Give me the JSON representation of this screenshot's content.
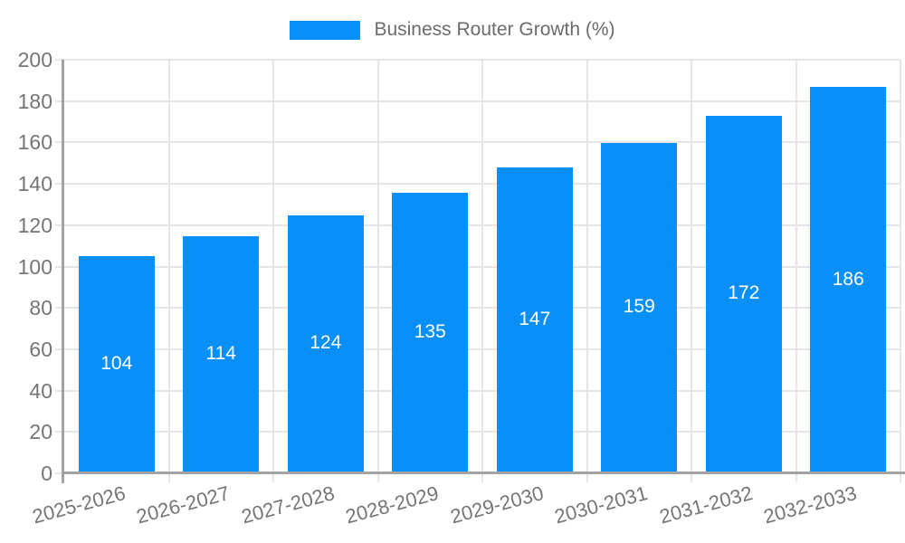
{
  "legend": {
    "label": "Business Router Growth (%)"
  },
  "chart_data": {
    "type": "bar",
    "title": "",
    "xlabel": "",
    "ylabel": "",
    "categories": [
      "2025-2026",
      "2026-2027",
      "2027-2028",
      "2028-2029",
      "2029-2030",
      "2030-2031",
      "2031-2032",
      "2032-2033"
    ],
    "series": [
      {
        "name": "Business Router Growth (%)",
        "values": [
          104,
          114,
          124,
          135,
          147,
          159,
          172,
          186
        ]
      }
    ],
    "bar_value_labels": [
      "104",
      "114",
      "124",
      "135",
      "147",
      "159",
      "172",
      "186"
    ],
    "ylim": [
      0,
      200
    ],
    "ytick_step": 20,
    "yticks": [
      "0",
      "20",
      "40",
      "60",
      "80",
      "100",
      "120",
      "140",
      "160",
      "180",
      "200"
    ],
    "grid": true,
    "legend_position": "top-center",
    "colors": {
      "bar": "#0890f8",
      "bar_label": "#ffffff",
      "grid": "#e6e6e6",
      "axis": "#a3a3a3",
      "tick_label": "#757575",
      "legend_text": "#6b6b6b"
    }
  }
}
